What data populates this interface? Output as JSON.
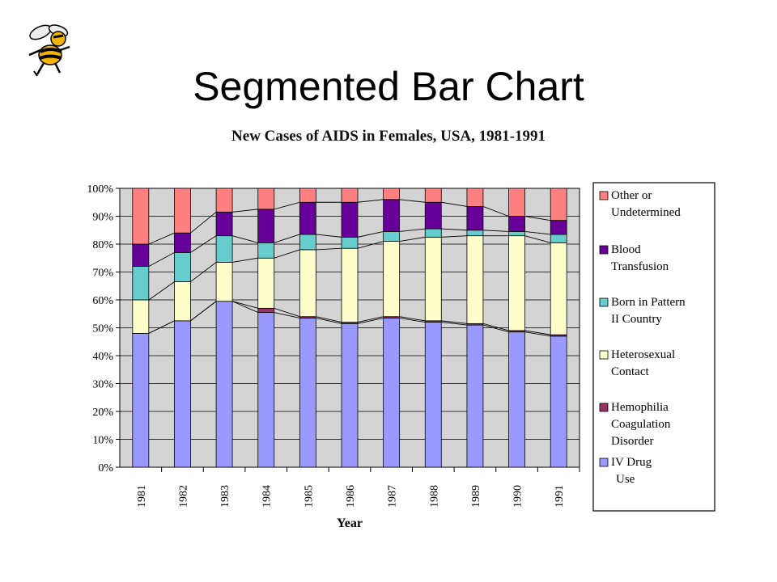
{
  "slide": {
    "title": "Segmented Bar Chart"
  },
  "logo": {
    "icon": "hornet-mascot-icon"
  },
  "chart_data": {
    "type": "bar",
    "stacked": true,
    "normalized": true,
    "title": "New Cases of AIDS in Females, USA, 1981-1991",
    "xlabel": "Year",
    "ylabel": "",
    "ylim": [
      0,
      100
    ],
    "yticks": [
      "0%",
      "10%",
      "20%",
      "30%",
      "40%",
      "50%",
      "60%",
      "70%",
      "80%",
      "90%",
      "100%"
    ],
    "categories": [
      "1981",
      "1982",
      "1983",
      "1984",
      "1985",
      "1986",
      "1987",
      "1988",
      "1989",
      "1990",
      "1991"
    ],
    "plot_background": "#d4d4d4",
    "grid": true,
    "legend_position": "right",
    "series": [
      {
        "name": "IV Drug Use",
        "color": "#9999ff",
        "values": [
          48,
          52.5,
          59.5,
          55.5,
          53.5,
          51.5,
          53.5,
          52,
          51,
          48.5,
          47
        ]
      },
      {
        "name": "Hemophilia Coagulation Disorder",
        "color": "#993366",
        "values": [
          0,
          0,
          0,
          1.5,
          0.5,
          0.5,
          0.5,
          0.5,
          0.5,
          0.5,
          0.5
        ]
      },
      {
        "name": "Heterosexual Contact",
        "color": "#ffffcc",
        "values": [
          12,
          14,
          14,
          18,
          24,
          26.5,
          27,
          30,
          31.5,
          34,
          33
        ]
      },
      {
        "name": "Born in Pattern II Country",
        "color": "#66cccc",
        "values": [
          12,
          10.5,
          9.5,
          5.5,
          5.5,
          4,
          3.5,
          3,
          2,
          1.5,
          3
        ]
      },
      {
        "name": "Blood Transfusion",
        "color": "#660099",
        "values": [
          8,
          7,
          8.5,
          12,
          11.5,
          12.5,
          11.5,
          9.5,
          8.5,
          5.5,
          5
        ]
      },
      {
        "name": "Other or Undetermined",
        "color": "#ff8080",
        "values": [
          20,
          16,
          8.5,
          7.5,
          5,
          5,
          4,
          5,
          6.5,
          10,
          11.5
        ]
      }
    ],
    "legend": [
      {
        "lines": [
          "Other or",
          "Undetermined"
        ],
        "color": "#ff8080"
      },
      {
        "lines": [
          "Blood",
          "Transfusion"
        ],
        "color": "#660099"
      },
      {
        "lines": [
          "Born in Pattern",
          "II Country"
        ],
        "color": "#66cccc"
      },
      {
        "lines": [
          "Heterosexual",
          "Contact"
        ],
        "color": "#ffffcc"
      },
      {
        "lines": [
          "Hemophilia",
          "Coagulation",
          "Disorder"
        ],
        "color": "#993366"
      },
      {
        "lines": [
          "IV Drug",
          "Use"
        ],
        "color": "#9999ff"
      }
    ]
  }
}
